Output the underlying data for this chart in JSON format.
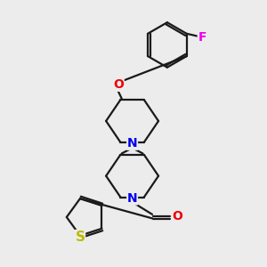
{
  "bg_color": "#ececec",
  "bond_color": "#1a1a1a",
  "bond_width": 1.6,
  "atom_colors": {
    "N": "#0000ee",
    "O": "#ee0000",
    "F": "#ee00ee",
    "S": "#bbbb00",
    "C": "#1a1a1a"
  },
  "font_size": 9.5,
  "fig_size": [
    3.0,
    3.0
  ],
  "dpi": 100,
  "xlim": [
    0.0,
    8.5
  ],
  "ylim": [
    0.0,
    10.5
  ]
}
